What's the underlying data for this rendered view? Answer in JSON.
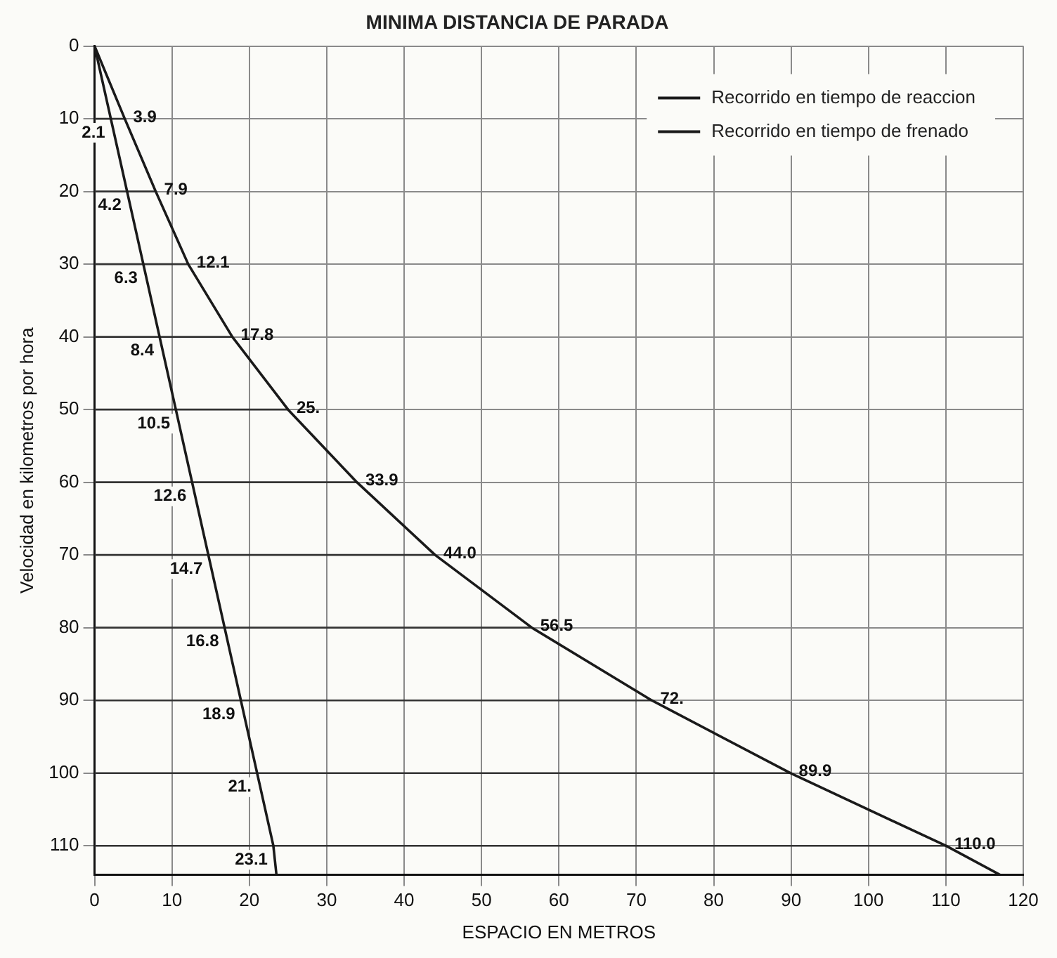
{
  "chart_data": {
    "type": "line",
    "orientation": "horizontal",
    "title": "MINIMA DISTANCIA DE PARADA",
    "xlabel": "ESPACIO EN METROS",
    "ylabel": "Velocidad en kilometros por hora",
    "xlim": [
      0,
      120
    ],
    "xticks": [
      0,
      10,
      20,
      30,
      40,
      50,
      60,
      70,
      80,
      90,
      100,
      110,
      120
    ],
    "ylim": [
      114,
      0
    ],
    "yticks": [
      0,
      10,
      20,
      30,
      40,
      50,
      60,
      70,
      80,
      90,
      100,
      110
    ],
    "grid": true,
    "legend": "top right",
    "marker": "none",
    "line_style": "solid",
    "series": [
      {
        "name": "Recorrido en tiempo de reaccion",
        "color": "#1a1a1a",
        "x": [
          0,
          10,
          20,
          30,
          40,
          50,
          60,
          70,
          80,
          90,
          100,
          110,
          114
        ],
        "values": [
          0,
          2.1,
          4.2,
          6.3,
          8.4,
          10.5,
          12.6,
          14.7,
          16.8,
          18.9,
          21,
          23.1,
          23.5
        ],
        "value_labels": [
          null,
          "2.1",
          "4.2",
          "6.3",
          "8.4",
          "10.5",
          "12.6",
          "14.7",
          "16.8",
          "18.9",
          "21.",
          "23.1",
          null
        ]
      },
      {
        "name": "Recorrido en tiempo de frenado",
        "color": "#1a1a1a",
        "x": [
          0,
          10,
          20,
          30,
          40,
          50,
          60,
          70,
          80,
          90,
          100,
          110,
          114
        ],
        "values": [
          0,
          3.9,
          7.9,
          12.1,
          17.8,
          25,
          33.9,
          44.0,
          56.5,
          72,
          89.9,
          110.0,
          117
        ],
        "value_labels": [
          null,
          "3.9",
          "7.9",
          "12.1",
          "17.8",
          "25.",
          "33.9",
          "44.0",
          "56.5",
          "72.",
          "89.9",
          "110.0",
          null
        ]
      }
    ]
  }
}
